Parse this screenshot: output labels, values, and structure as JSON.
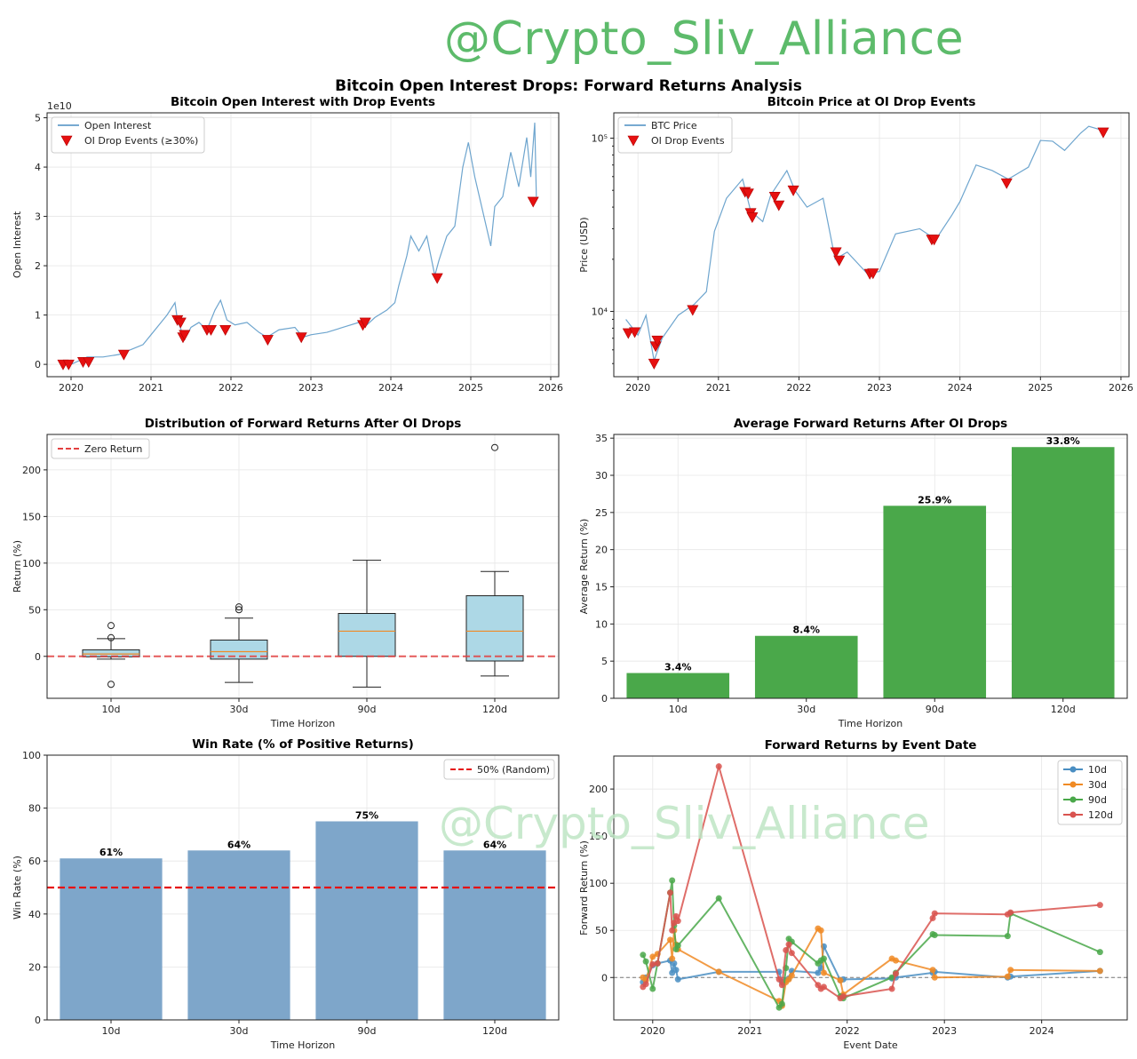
{
  "watermark": "@Crypto_Sliv_Alliance",
  "suptitle": "Bitcoin Open Interest Drops: Forward Returns Analysis",
  "colors": {
    "blue": "#4a8ec2",
    "orange": "#f08a24",
    "green": "#4aa84a",
    "red": "#d9534f",
    "steel": "#7ea6ca",
    "box": "#add8e6",
    "marker": "#e61010"
  },
  "chart_data": [
    {
      "id": "oi",
      "type": "line",
      "title": "Bitcoin Open Interest with Drop Events",
      "ylabel": "Open Interest",
      "exponent": "1e10",
      "xlim": [
        2019.7,
        2026.1
      ],
      "ylim": [
        -0.25,
        5.1
      ],
      "yticks": [
        0,
        1,
        2,
        3,
        4,
        5
      ],
      "xticks": [
        "2020",
        "2021",
        "2022",
        "2023",
        "2024",
        "2025",
        "2026"
      ],
      "legend": [
        "Open Interest",
        "OI Drop Events (≥30%)"
      ],
      "series": [
        {
          "name": "Open Interest",
          "x": [
            2019.85,
            2020.0,
            2020.2,
            2020.4,
            2020.6,
            2020.75,
            2020.9,
            2021.0,
            2021.1,
            2021.2,
            2021.3,
            2021.33,
            2021.4,
            2021.45,
            2021.5,
            2021.6,
            2021.7,
            2021.8,
            2021.87,
            2021.95,
            2022.05,
            2022.2,
            2022.35,
            2022.45,
            2022.6,
            2022.8,
            2022.9,
            2023.0,
            2023.2,
            2023.4,
            2023.6,
            2023.7,
            2023.8,
            2023.95,
            2024.05,
            2024.1,
            2024.2,
            2024.25,
            2024.35,
            2024.45,
            2024.55,
            2024.6,
            2024.7,
            2024.8,
            2024.9,
            2024.97,
            2025.05,
            2025.15,
            2025.25,
            2025.3,
            2025.4,
            2025.5,
            2025.6,
            2025.7,
            2025.75,
            2025.8,
            2025.82
          ],
          "y": [
            0.05,
            0.0,
            0.15,
            0.15,
            0.2,
            0.3,
            0.4,
            0.6,
            0.8,
            1.0,
            1.25,
            0.9,
            0.6,
            0.6,
            0.75,
            0.85,
            0.7,
            1.1,
            1.3,
            0.9,
            0.8,
            0.85,
            0.65,
            0.55,
            0.7,
            0.75,
            0.55,
            0.6,
            0.65,
            0.75,
            0.85,
            0.8,
            0.95,
            1.1,
            1.25,
            1.6,
            2.2,
            2.6,
            2.3,
            2.6,
            1.8,
            2.1,
            2.6,
            2.8,
            4.0,
            4.5,
            3.8,
            3.1,
            2.4,
            3.2,
            3.4,
            4.3,
            3.6,
            4.6,
            3.8,
            4.9,
            3.4
          ]
        }
      ],
      "events": {
        "x": [
          2019.9,
          2019.97,
          2020.15,
          2020.22,
          2020.66,
          2021.33,
          2021.37,
          2021.4,
          2021.42,
          2021.7,
          2021.75,
          2021.93,
          2022.46,
          2022.88,
          2023.65,
          2023.68,
          2024.58,
          2025.78
        ],
        "y": [
          0.0,
          0.0,
          0.05,
          0.05,
          0.2,
          0.9,
          0.85,
          0.55,
          0.6,
          0.7,
          0.7,
          0.7,
          0.5,
          0.55,
          0.8,
          0.85,
          1.75,
          3.3
        ]
      }
    },
    {
      "id": "price",
      "type": "line",
      "title": "Bitcoin Price at OI Drop Events",
      "ylabel": "Price (USD)",
      "yscale": "log",
      "xlim": [
        2019.7,
        2026.1
      ],
      "ylim": [
        4200,
        140000
      ],
      "yticks": [
        "10⁴",
        "10⁵"
      ],
      "xticks": [
        "2020",
        "2021",
        "2022",
        "2023",
        "2024",
        "2025",
        "2026"
      ],
      "legend": [
        "BTC Price",
        "OI Drop Events"
      ],
      "series": [
        {
          "name": "BTC Price",
          "x": [
            2019.85,
            2020.0,
            2020.1,
            2020.2,
            2020.3,
            2020.5,
            2020.7,
            2020.85,
            2020.95,
            2021.1,
            2021.3,
            2021.4,
            2021.55,
            2021.65,
            2021.85,
            2021.95,
            2022.1,
            2022.3,
            2022.45,
            2022.6,
            2022.85,
            2023.0,
            2023.2,
            2023.5,
            2023.7,
            2023.9,
            2024.0,
            2024.2,
            2024.4,
            2024.6,
            2024.85,
            2025.0,
            2025.15,
            2025.3,
            2025.5,
            2025.6,
            2025.8
          ],
          "y": [
            9000,
            7300,
            9500,
            5200,
            7000,
            9500,
            11000,
            13000,
            29000,
            45000,
            58000,
            38000,
            33000,
            47000,
            65000,
            50000,
            40000,
            45000,
            20000,
            22000,
            16500,
            17000,
            28000,
            30000,
            26000,
            36000,
            43000,
            70000,
            65000,
            58000,
            68000,
            97000,
            96000,
            85000,
            107000,
            117000,
            110000
          ]
        }
      ],
      "events": {
        "x": [
          2019.88,
          2019.96,
          2020.2,
          2020.22,
          2020.24,
          2020.68,
          2021.33,
          2021.37,
          2021.4,
          2021.42,
          2021.7,
          2021.75,
          2021.93,
          2022.46,
          2022.5,
          2022.88,
          2022.92,
          2023.65,
          2023.68,
          2024.58,
          2025.78
        ],
        "y": [
          7500,
          7600,
          5000,
          6300,
          6800,
          10200,
          49000,
          48000,
          37000,
          35000,
          46000,
          41000,
          50000,
          22000,
          19700,
          16500,
          16600,
          26000,
          26000,
          55000,
          108000
        ]
      }
    },
    {
      "id": "box",
      "type": "box",
      "title": "Distribution of Forward Returns After OI Drops",
      "xlabel": "Time Horizon",
      "ylabel": "Return (%)",
      "ylim": [
        -45,
        238
      ],
      "yticks": [
        0,
        50,
        100,
        150,
        200
      ],
      "legend": [
        "Zero Return"
      ],
      "categories": [
        "10d",
        "30d",
        "90d",
        "120d"
      ],
      "boxes": [
        {
          "wlo": -3,
          "q1": -0.5,
          "med": 2.5,
          "q3": 7,
          "whi": 19,
          "fliers": [
            20,
            33,
            -30
          ]
        },
        {
          "wlo": -28,
          "q1": -3,
          "med": 5,
          "q3": 17.5,
          "whi": 41,
          "fliers": [
            50,
            53
          ]
        },
        {
          "wlo": -33,
          "q1": 0,
          "med": 27,
          "q3": 46,
          "whi": 103,
          "fliers": []
        },
        {
          "wlo": -21,
          "q1": -5,
          "med": 27,
          "q3": 65,
          "whi": 91,
          "fliers": [
            224
          ]
        }
      ]
    },
    {
      "id": "avg",
      "type": "bar",
      "title": "Average Forward Returns After OI Drops",
      "xlabel": "Time Horizon",
      "ylabel": "Average Return (%)",
      "ylim": [
        0,
        35.5
      ],
      "yticks": [
        0,
        5,
        10,
        15,
        20,
        25,
        30,
        35
      ],
      "categories": [
        "10d",
        "30d",
        "90d",
        "120d"
      ],
      "values": [
        3.4,
        8.4,
        25.9,
        33.8
      ],
      "labels": [
        "3.4%",
        "8.4%",
        "25.9%",
        "33.8%"
      ]
    },
    {
      "id": "win",
      "type": "bar",
      "title": "Win Rate (% of Positive Returns)",
      "xlabel": "Time Horizon",
      "ylabel": "Win Rate (%)",
      "ylim": [
        0,
        100
      ],
      "yticks": [
        0,
        20,
        40,
        60,
        80,
        100
      ],
      "legend": [
        "50% (Random)"
      ],
      "reference": 50,
      "categories": [
        "10d",
        "30d",
        "90d",
        "120d"
      ],
      "values": [
        61,
        64,
        75,
        64
      ],
      "labels": [
        "61%",
        "64%",
        "75%",
        "64%"
      ]
    },
    {
      "id": "event",
      "type": "line",
      "title": "Forward Returns by Event Date",
      "xlabel": "Event Date",
      "ylabel": "Forward Return (%)",
      "xlim": [
        2019.6,
        2024.88
      ],
      "ylim": [
        -45,
        235
      ],
      "yticks": [
        0,
        50,
        100,
        150,
        200
      ],
      "xticks": [
        "2020",
        "2021",
        "2022",
        "2023",
        "2024"
      ],
      "legend": [
        "10d",
        "30d",
        "90d",
        "120d"
      ],
      "x": [
        2019.9,
        2019.93,
        2020.0,
        2020.05,
        2020.18,
        2020.2,
        2020.22,
        2020.24,
        2020.26,
        2020.68,
        2021.3,
        2021.33,
        2021.37,
        2021.4,
        2021.43,
        2021.7,
        2021.73,
        2021.76,
        2021.93,
        2021.96,
        2022.46,
        2022.5,
        2022.88,
        2022.9,
        2023.65,
        2023.68,
        2024.6
      ],
      "series": [
        {
          "name": "10d",
          "values": [
            -5,
            0,
            13,
            15,
            18,
            5,
            15,
            8,
            -2,
            6,
            6,
            -5,
            -3,
            -1,
            7,
            5,
            10,
            33,
            -3,
            -2,
            -1,
            0,
            5,
            6,
            0,
            1,
            7
          ]
        },
        {
          "name": "30d",
          "values": [
            0,
            -3,
            22,
            25,
            40,
            20,
            50,
            35,
            30,
            6,
            -25,
            -30,
            -5,
            -2,
            2,
            52,
            50,
            5,
            -3,
            -18,
            20,
            18,
            8,
            0,
            1,
            8,
            7
          ]
        },
        {
          "name": "90d",
          "values": [
            24,
            17,
            -12,
            15,
            90,
            103,
            55,
            30,
            34,
            84,
            -32,
            -28,
            10,
            41,
            38,
            15,
            18,
            20,
            -20,
            -22,
            0,
            5,
            46,
            45,
            44,
            68,
            27
          ]
        },
        {
          "name": "120d",
          "values": [
            -10,
            -7,
            14,
            15,
            90,
            50,
            58,
            65,
            60,
            224,
            -2,
            -8,
            29,
            35,
            26,
            -8,
            -12,
            -10,
            -22,
            -20,
            -12,
            4,
            63,
            68,
            67,
            69,
            77
          ]
        }
      ]
    }
  ]
}
